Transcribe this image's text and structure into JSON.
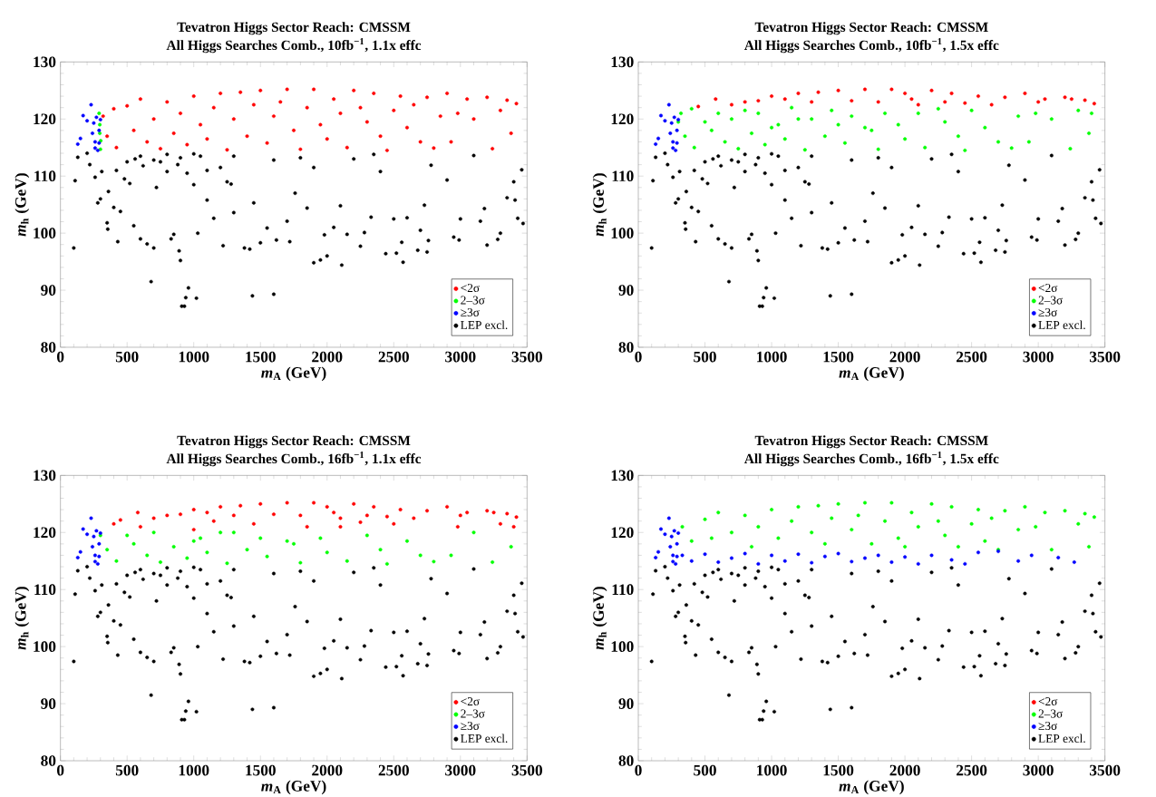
{
  "chart_data": [
    {
      "type": "scatter",
      "title": "Tevatron Higgs Sector Reach: CMSSM",
      "subtitle": "All Higgs Searches Comb., 10fb$^{−1}$, 1.1x effc",
      "xlabel": "*m*$_{A}$ (GeV)",
      "ylabel": "*m*$_{h}$ (GeV)",
      "xlim": [
        0,
        3500
      ],
      "ylim": [
        80,
        130
      ],
      "xticks": [
        0,
        500,
        1000,
        1500,
        2000,
        2500,
        3000,
        3500
      ],
      "yticks": [
        80,
        90,
        100,
        110,
        120,
        130
      ],
      "legend": "bottom right",
      "marker": "circle",
      "series": [
        {
          "name": "<2σ",
          "color": "#ff0000",
          "x": [
            320,
            350,
            400,
            420,
            500,
            550,
            600,
            650,
            700,
            750,
            800,
            850,
            900,
            950,
            1000,
            1050,
            1100,
            1150,
            1200,
            1250,
            1300,
            1350,
            1400,
            1450,
            1500,
            1550,
            1600,
            1650,
            1700,
            1750,
            1800,
            1850,
            1900,
            1950,
            2000,
            2050,
            2100,
            2150,
            2200,
            2250,
            2300,
            2350,
            2400,
            2450,
            2500,
            2550,
            2600,
            2650,
            2700,
            2750,
            2800,
            2850,
            2900,
            2930,
            2980,
            3050,
            3100,
            3200,
            3240,
            3300,
            3350,
            3380,
            3420
          ],
          "values": [
            120.5,
            117,
            121.8,
            115,
            122.3,
            118,
            123.5,
            116,
            120,
            114.8,
            123,
            117.5,
            121,
            115.5,
            124,
            119,
            116.5,
            122,
            124.5,
            114.6,
            120,
            124.7,
            117,
            122.5,
            125,
            115.8,
            120.5,
            123,
            125.2,
            118,
            114.7,
            122,
            125.2,
            119,
            116.5,
            123.5,
            121,
            115,
            125,
            122,
            119.5,
            124.5,
            117,
            114.5,
            121.5,
            124,
            118.5,
            122.5,
            116,
            123.8,
            114.9,
            120.5,
            124.5,
            116,
            121,
            123.5,
            120,
            123.8,
            114.8,
            121.5,
            123.3,
            117.5,
            122.7
          ]
        },
        {
          "name": "2–3σ",
          "color": "#00ff00",
          "x": [
            290,
            295,
            295,
            302,
            300
          ],
          "values": [
            121,
            119,
            117.5,
            116.2,
            114.7
          ]
        },
        {
          "name": "≥3σ",
          "color": "#0000ff",
          "x": [
            130,
            150,
            170,
            200,
            230,
            240,
            250,
            260,
            270,
            280,
            290,
            300,
            290,
            260
          ],
          "values": [
            115.6,
            116.6,
            120.6,
            119.7,
            122.5,
            117.5,
            119.3,
            116,
            120.3,
            114.5,
            118,
            119.9,
            115.8,
            114.9
          ]
        },
        {
          "name": "LEP excl.",
          "color": "#000000",
          "x": [
            100,
            110,
            130,
            200,
            220,
            260,
            280,
            300,
            310,
            350,
            355,
            360,
            400,
            420,
            430,
            450,
            480,
            520,
            550,
            560,
            600,
            620,
            650,
            680,
            700,
            720,
            750,
            800,
            830,
            850,
            880,
            890,
            900,
            910,
            930,
            940,
            960,
            1000,
            1020,
            1030,
            1050,
            1100,
            1150,
            1200,
            1220,
            1280,
            1300,
            1380,
            1420,
            1440,
            1450,
            1500,
            1550,
            1600,
            1620,
            1700,
            1720,
            1760,
            1850,
            1900,
            1950,
            1980,
            2000,
            2050,
            2100,
            2110,
            2150,
            2250,
            2280,
            2330,
            2400,
            2440,
            2500,
            2520,
            2560,
            2570,
            2600,
            2680,
            2700,
            2730,
            2750,
            2760,
            2780,
            2900,
            2950,
            2990,
            3000,
            3100,
            3150,
            3180,
            3200,
            3280,
            3300,
            3350,
            3400,
            3410,
            3430,
            3460,
            3470,
            1300,
            1600,
            1800,
            1900,
            2200,
            2350,
            600,
            700,
            800,
            900,
            1000,
            1100,
            500,
            950,
            1250
          ],
          "values": [
            97.4,
            109.2,
            113.3,
            114,
            112,
            109.8,
            105.3,
            106,
            110.8,
            101.8,
            100.7,
            107.3,
            104.5,
            111,
            98.5,
            103.8,
            109.5,
            108.7,
            101.3,
            113,
            99,
            111.8,
            98.1,
            91.5,
            97.4,
            108,
            112.5,
            110.8,
            99,
            99.8,
            112,
            96.9,
            95.2,
            87.2,
            87.2,
            88.7,
            90.4,
            108.5,
            88.6,
            100,
            113.5,
            105.8,
            102.6,
            111.5,
            97.8,
            108.6,
            103.6,
            97.4,
            97.2,
            89,
            105.3,
            98.3,
            100.9,
            89.3,
            98.8,
            102.1,
            98.5,
            107,
            104.4,
            94.8,
            95.3,
            99.7,
            96,
            101,
            104.8,
            94.4,
            99.8,
            97.7,
            100.1,
            102.8,
            110.8,
            96.4,
            102.5,
            96.5,
            98.4,
            94.9,
            102.7,
            97,
            100.5,
            104.9,
            96.7,
            98.7,
            111.9,
            109.3,
            99.3,
            98.8,
            102.5,
            113.6,
            102.1,
            104.3,
            97.9,
            98.9,
            100,
            106.2,
            109,
            105.8,
            102.6,
            111.1,
            101.7,
            113.5,
            112.8,
            113.2,
            111.5,
            113,
            113.8,
            113.5,
            112.8,
            113.8,
            113.2,
            113.9,
            111,
            112.5,
            110.5,
            109
          ]
        }
      ]
    },
    {
      "type": "scatter",
      "title": "Tevatron Higgs Sector Reach: CMSSM",
      "subtitle": "All Higgs Searches Comb., 10fb$^{−1}$, 1.5x effc",
      "xlabel": "*m*$_{A}$ (GeV)",
      "ylabel": "*m*$_{h}$ (GeV)",
      "xlim": [
        0,
        3500
      ],
      "ylim": [
        80,
        130
      ],
      "xticks": [
        0,
        500,
        1000,
        1500,
        2000,
        2500,
        3000,
        3500
      ],
      "yticks": [
        80,
        90,
        100,
        110,
        120,
        130
      ],
      "legend": "bottom right",
      "marker": "circle",
      "series": [
        {
          "name": "<2σ",
          "color": "#ff0000",
          "x": [
            450,
            580,
            700,
            800,
            900,
            1000,
            1100,
            1200,
            1300,
            1350,
            1500,
            1600,
            1700,
            1800,
            1900,
            2000,
            2050,
            2100,
            2200,
            2300,
            2350,
            2450,
            2550,
            2650,
            2750,
            2900,
            3000,
            3050,
            3200,
            3250,
            3350,
            3420
          ],
          "values": [
            122.2,
            123.5,
            122.5,
            123,
            123.2,
            124,
            123.5,
            124.5,
            123,
            124.7,
            125,
            123.2,
            125.2,
            123,
            125.2,
            124.5,
            123.5,
            122.5,
            125,
            123,
            124.5,
            122.8,
            124,
            122.5,
            123.8,
            124.5,
            123,
            123.5,
            123.8,
            123.5,
            123.3,
            122.7
          ]
        },
        {
          "name": "2–3σ",
          "color": "#00ff00",
          "x": [
            300,
            320,
            350,
            400,
            420,
            500,
            550,
            600,
            650,
            700,
            750,
            800,
            850,
            900,
            950,
            1000,
            1050,
            1100,
            1150,
            1200,
            1250,
            1300,
            1400,
            1450,
            1500,
            1550,
            1600,
            1700,
            1750,
            1800,
            1850,
            1950,
            2000,
            2100,
            2150,
            2250,
            2300,
            2400,
            2450,
            2500,
            2600,
            2700,
            2800,
            2850,
            2930,
            2980,
            3100,
            3240,
            3300,
            3380,
            3400
          ],
          "values": [
            119.5,
            121,
            117,
            121.8,
            115,
            119.5,
            118,
            121,
            116,
            120,
            114.8,
            121.5,
            117.5,
            121,
            115.5,
            118.5,
            119,
            116.5,
            122,
            120,
            114.6,
            120,
            117,
            121.5,
            119,
            115.8,
            120.5,
            118.5,
            118,
            114.7,
            121,
            119,
            116.5,
            121,
            115,
            121.8,
            119.5,
            117,
            114.5,
            121.5,
            118.5,
            116,
            114.9,
            120.5,
            116,
            121,
            120,
            114.8,
            121.5,
            117.5,
            121
          ]
        },
        {
          "name": "≥3σ",
          "color": "#0000ff",
          "x": [
            130,
            150,
            170,
            200,
            230,
            240,
            250,
            260,
            270,
            280,
            290,
            300,
            290,
            260
          ],
          "values": [
            115.6,
            116.6,
            120.6,
            119.7,
            122.5,
            117.5,
            119.3,
            116,
            120.3,
            114.5,
            118,
            119.9,
            115.8,
            114.9
          ]
        },
        {
          "name": "LEP excl.",
          "color": "#000000",
          "x": [
            100,
            110,
            130,
            200,
            220,
            260,
            280,
            300,
            310,
            350,
            355,
            360,
            400,
            420,
            430,
            450,
            480,
            520,
            550,
            560,
            600,
            620,
            650,
            680,
            700,
            720,
            750,
            800,
            830,
            850,
            880,
            890,
            900,
            910,
            930,
            940,
            960,
            1000,
            1020,
            1030,
            1050,
            1100,
            1150,
            1200,
            1220,
            1280,
            1300,
            1380,
            1420,
            1440,
            1450,
            1500,
            1550,
            1600,
            1620,
            1700,
            1720,
            1760,
            1850,
            1900,
            1950,
            1980,
            2000,
            2050,
            2100,
            2110,
            2150,
            2250,
            2280,
            2330,
            2400,
            2440,
            2500,
            2520,
            2560,
            2570,
            2600,
            2680,
            2700,
            2730,
            2750,
            2760,
            2780,
            2900,
            2950,
            2990,
            3000,
            3100,
            3150,
            3180,
            3200,
            3280,
            3300,
            3350,
            3400,
            3410,
            3430,
            3460,
            3470,
            1300,
            1600,
            1800,
            1900,
            2200,
            2350,
            600,
            700,
            800,
            900,
            1000,
            1100,
            500,
            950,
            1250
          ],
          "values": [
            97.4,
            109.2,
            113.3,
            114,
            112,
            109.8,
            105.3,
            106,
            110.8,
            101.8,
            100.7,
            107.3,
            104.5,
            111,
            98.5,
            103.8,
            109.5,
            108.7,
            101.3,
            113,
            99,
            111.8,
            98.1,
            91.5,
            97.4,
            108,
            112.5,
            110.8,
            99,
            99.8,
            112,
            96.9,
            95.2,
            87.2,
            87.2,
            88.7,
            90.4,
            108.5,
            88.6,
            100,
            113.5,
            105.8,
            102.6,
            111.5,
            97.8,
            108.6,
            103.6,
            97.4,
            97.2,
            89,
            105.3,
            98.3,
            100.9,
            89.3,
            98.8,
            102.1,
            98.5,
            107,
            104.4,
            94.8,
            95.3,
            99.7,
            96,
            101,
            104.8,
            94.4,
            99.8,
            97.7,
            100.1,
            102.8,
            110.8,
            96.4,
            102.5,
            96.5,
            98.4,
            94.9,
            102.7,
            97,
            100.5,
            104.9,
            96.7,
            98.7,
            111.9,
            109.3,
            99.3,
            98.8,
            102.5,
            113.6,
            102.1,
            104.3,
            97.9,
            98.9,
            100,
            106.2,
            109,
            105.8,
            102.6,
            111.1,
            101.7,
            113.5,
            112.8,
            113.2,
            111.5,
            113,
            113.8,
            113.5,
            112.8,
            113.8,
            113.2,
            113.9,
            111,
            112.5,
            110.5,
            109
          ]
        }
      ]
    },
    {
      "type": "scatter",
      "title": "Tevatron Higgs Sector Reach: CMSSM",
      "subtitle": "All Higgs Searches Comb., 16fb$^{−1}$, 1.1x effc",
      "xlabel": "*m*$_{A}$ (GeV)",
      "ylabel": "*m*$_{h}$ (GeV)",
      "xlim": [
        0,
        3500
      ],
      "ylim": [
        80,
        130
      ],
      "xticks": [
        0,
        500,
        1000,
        1500,
        2000,
        2500,
        3000,
        3500
      ],
      "yticks": [
        80,
        90,
        100,
        110,
        120,
        130
      ],
      "legend": "bottom right",
      "marker": "circle",
      "series": [
        {
          "name": "<2σ",
          "color": "#ff0000",
          "x": [
            400,
            450,
            580,
            600,
            700,
            800,
            900,
            1000,
            1000,
            1100,
            1150,
            1200,
            1300,
            1350,
            1450,
            1500,
            1600,
            1700,
            1800,
            1850,
            1900,
            2000,
            2050,
            2100,
            2100,
            2200,
            2250,
            2300,
            2350,
            2450,
            2500,
            2550,
            2650,
            2750,
            2900,
            2980,
            3000,
            3050,
            3200,
            3250,
            3300,
            3350,
            3400,
            3420
          ],
          "values": [
            121.5,
            122.2,
            123.5,
            121,
            122.5,
            123,
            123.2,
            124,
            120.5,
            123.5,
            122,
            124.5,
            123,
            124.7,
            121.5,
            125,
            123.2,
            125.2,
            123,
            121,
            125.2,
            124.5,
            123.5,
            122.5,
            121,
            125,
            121.8,
            123,
            124.5,
            122.8,
            121.5,
            124,
            122.5,
            123.8,
            124.5,
            121,
            123,
            123.5,
            123.8,
            123.5,
            121.5,
            123.3,
            121,
            122.7
          ]
        },
        {
          "name": "2–3σ",
          "color": "#00ff00",
          "x": [
            300,
            350,
            420,
            500,
            550,
            650,
            700,
            750,
            850,
            950,
            1000,
            1050,
            1100,
            1200,
            1250,
            1300,
            1400,
            1500,
            1550,
            1700,
            1750,
            1800,
            1950,
            2000,
            2150,
            2300,
            2400,
            2450,
            2600,
            2700,
            2800,
            2930,
            3100,
            3240,
            3380
          ],
          "values": [
            119.5,
            117,
            115,
            119.5,
            118,
            116,
            120,
            114.8,
            117.5,
            115.5,
            118.5,
            119,
            116.5,
            120,
            114.6,
            120,
            117,
            119,
            115.8,
            118.5,
            118,
            114.7,
            119,
            116.5,
            115,
            119.5,
            117,
            114.5,
            118.5,
            116,
            114.9,
            116,
            120,
            114.8,
            117.5
          ]
        },
        {
          "name": "≥3σ",
          "color": "#0000ff",
          "x": [
            130,
            150,
            170,
            200,
            230,
            240,
            250,
            260,
            270,
            280,
            290,
            300,
            290,
            260
          ],
          "values": [
            115.6,
            116.6,
            120.6,
            119.7,
            122.5,
            117.5,
            119.3,
            116,
            120.3,
            114.5,
            118,
            119.9,
            115.8,
            114.9
          ]
        },
        {
          "name": "LEP excl.",
          "color": "#000000",
          "x": [
            100,
            110,
            130,
            200,
            220,
            260,
            280,
            300,
            310,
            350,
            355,
            360,
            400,
            420,
            430,
            450,
            480,
            520,
            550,
            560,
            600,
            620,
            650,
            680,
            700,
            720,
            750,
            800,
            830,
            850,
            880,
            890,
            900,
            910,
            930,
            940,
            960,
            1000,
            1020,
            1030,
            1050,
            1100,
            1150,
            1200,
            1220,
            1280,
            1300,
            1380,
            1420,
            1440,
            1450,
            1500,
            1550,
            1600,
            1620,
            1700,
            1720,
            1760,
            1850,
            1900,
            1950,
            1980,
            2000,
            2050,
            2100,
            2110,
            2150,
            2250,
            2280,
            2330,
            2400,
            2440,
            2500,
            2520,
            2560,
            2570,
            2600,
            2680,
            2700,
            2730,
            2750,
            2760,
            2780,
            2900,
            2950,
            2990,
            3000,
            3100,
            3150,
            3180,
            3200,
            3280,
            3300,
            3350,
            3400,
            3410,
            3430,
            3460,
            3470,
            1300,
            1600,
            1800,
            1900,
            2200,
            2350,
            600,
            700,
            800,
            900,
            1000,
            1100,
            500,
            950,
            1250
          ],
          "values": [
            97.4,
            109.2,
            113.3,
            114,
            112,
            109.8,
            105.3,
            106,
            110.8,
            101.8,
            100.7,
            107.3,
            104.5,
            111,
            98.5,
            103.8,
            109.5,
            108.7,
            101.3,
            113,
            99,
            111.8,
            98.1,
            91.5,
            97.4,
            108,
            112.5,
            110.8,
            99,
            99.8,
            112,
            96.9,
            95.2,
            87.2,
            87.2,
            88.7,
            90.4,
            108.5,
            88.6,
            100,
            113.5,
            105.8,
            102.6,
            111.5,
            97.8,
            108.6,
            103.6,
            97.4,
            97.2,
            89,
            105.3,
            98.3,
            100.9,
            89.3,
            98.8,
            102.1,
            98.5,
            107,
            104.4,
            94.8,
            95.3,
            99.7,
            96,
            101,
            104.8,
            94.4,
            99.8,
            97.7,
            100.1,
            102.8,
            110.8,
            96.4,
            102.5,
            96.5,
            98.4,
            94.9,
            102.7,
            97,
            100.5,
            104.9,
            96.7,
            98.7,
            111.9,
            109.3,
            99.3,
            98.8,
            102.5,
            113.6,
            102.1,
            104.3,
            97.9,
            98.9,
            100,
            106.2,
            109,
            105.8,
            102.6,
            111.1,
            101.7,
            113.5,
            112.8,
            113.2,
            111.5,
            113,
            113.8,
            113.5,
            112.8,
            113.8,
            113.2,
            113.9,
            111,
            112.5,
            110.5,
            109
          ]
        }
      ]
    },
    {
      "type": "scatter",
      "title": "Tevatron Higgs Sector Reach: CMSSM",
      "subtitle": "All Higgs Searches Comb., 16fb$^{−1}$, 1.5x effc",
      "xlabel": "*m*$_{A}$ (GeV)",
      "ylabel": "*m*$_{h}$ (GeV)",
      "xlim": [
        0,
        3500
      ],
      "ylim": [
        80,
        130
      ],
      "xticks": [
        0,
        500,
        1000,
        1500,
        2000,
        2500,
        3000,
        3500
      ],
      "yticks": [
        80,
        90,
        100,
        110,
        120,
        130
      ],
      "legend": "bottom right",
      "marker": "circle",
      "series": [
        {
          "name": "<2σ",
          "color": "#ff0000"
        },
        {
          "name": "2–3σ",
          "color": "#00ff00",
          "x": [
            330,
            400,
            500,
            550,
            600,
            700,
            800,
            850,
            900,
            1000,
            1050,
            1150,
            1200,
            1300,
            1350,
            1400,
            1450,
            1500,
            1600,
            1650,
            1700,
            1750,
            1850,
            1900,
            1950,
            2000,
            2050,
            2100,
            2200,
            2250,
            2300,
            2350,
            2400,
            2500,
            2550,
            2600,
            2650,
            2700,
            2750,
            2850,
            2900,
            2980,
            3050,
            3100,
            3200,
            3300,
            3350,
            3380,
            3420
          ],
          "values": [
            121,
            118.5,
            122.3,
            119,
            123.5,
            120,
            123,
            117.5,
            121,
            124,
            119,
            122,
            124.5,
            120,
            124.7,
            118,
            122.5,
            125,
            120.5,
            123,
            125.2,
            118,
            122,
            125.2,
            119,
            117.5,
            123.5,
            121,
            125,
            122,
            119.5,
            124.5,
            117.5,
            121.5,
            124,
            118.5,
            122.5,
            117,
            123.8,
            120.5,
            124.5,
            121,
            123.5,
            117,
            123.8,
            121.5,
            123.3,
            117.5,
            122.7
          ]
        },
        {
          "name": "≥3σ",
          "color": "#0000ff",
          "x": [
            130,
            150,
            170,
            200,
            230,
            240,
            250,
            260,
            270,
            280,
            290,
            300,
            290,
            260,
            330,
            400,
            500,
            600,
            700,
            800,
            900,
            1000,
            1100,
            1200,
            1300,
            1400,
            1500,
            1600,
            1700,
            1800,
            1900,
            2000,
            2100,
            2200,
            2350,
            2450,
            2550,
            2700,
            2850,
            2950,
            3150,
            3270
          ],
          "values": [
            115.6,
            116.6,
            120.6,
            119.7,
            122.5,
            117.5,
            119.3,
            116,
            120.3,
            114.5,
            118,
            119.9,
            115.8,
            114.9,
            116,
            115,
            116.2,
            114.8,
            115.5,
            116.3,
            114.5,
            116,
            115,
            116.2,
            114.7,
            115.8,
            116.3,
            114.9,
            115.5,
            116,
            114.8,
            115.7,
            114.5,
            116,
            115.2,
            114.5,
            116.5,
            116.7,
            115,
            116,
            115.6,
            114.8
          ]
        },
        {
          "name": "LEP excl.",
          "color": "#000000",
          "x": [
            100,
            110,
            130,
            200,
            220,
            260,
            280,
            300,
            310,
            350,
            355,
            360,
            400,
            420,
            430,
            450,
            480,
            520,
            550,
            560,
            600,
            620,
            650,
            680,
            700,
            720,
            750,
            800,
            830,
            850,
            880,
            890,
            900,
            910,
            930,
            940,
            960,
            1000,
            1020,
            1030,
            1050,
            1100,
            1150,
            1200,
            1220,
            1280,
            1300,
            1380,
            1420,
            1440,
            1450,
            1500,
            1550,
            1600,
            1620,
            1700,
            1720,
            1760,
            1850,
            1900,
            1950,
            1980,
            2000,
            2050,
            2100,
            2110,
            2150,
            2250,
            2280,
            2330,
            2400,
            2440,
            2500,
            2520,
            2560,
            2570,
            2600,
            2680,
            2700,
            2730,
            2750,
            2760,
            2780,
            2900,
            2950,
            2990,
            3000,
            3100,
            3150,
            3180,
            3200,
            3280,
            3300,
            3350,
            3400,
            3410,
            3430,
            3460,
            3470,
            1300,
            1600,
            1800,
            1900,
            2200,
            2350,
            600,
            700,
            800,
            900,
            1000,
            1100,
            500,
            950,
            1250
          ],
          "values": [
            97.4,
            109.2,
            113.3,
            114,
            112,
            109.8,
            105.3,
            106,
            110.8,
            101.8,
            100.7,
            107.3,
            104.5,
            111,
            98.5,
            103.8,
            109.5,
            108.7,
            101.3,
            113,
            99,
            111.8,
            98.1,
            91.5,
            97.4,
            108,
            112.5,
            110.8,
            99,
            99.8,
            112,
            96.9,
            95.2,
            87.2,
            87.2,
            88.7,
            90.4,
            108.5,
            88.6,
            100,
            113.5,
            105.8,
            102.6,
            111.5,
            97.8,
            108.6,
            103.6,
            97.4,
            97.2,
            89,
            105.3,
            98.3,
            100.9,
            89.3,
            98.8,
            102.1,
            98.5,
            107,
            104.4,
            94.8,
            95.3,
            99.7,
            96,
            101,
            104.8,
            94.4,
            99.8,
            97.7,
            100.1,
            102.8,
            110.8,
            96.4,
            102.5,
            96.5,
            98.4,
            94.9,
            102.7,
            97,
            100.5,
            104.9,
            96.7,
            98.7,
            111.9,
            109.3,
            99.3,
            98.8,
            102.5,
            113.6,
            102.1,
            104.3,
            97.9,
            98.9,
            100,
            106.2,
            109,
            105.8,
            102.6,
            111.1,
            101.7,
            113.5,
            112.8,
            113.2,
            111.5,
            113,
            113.8,
            113.5,
            112.8,
            113.8,
            113.2,
            113.9,
            111,
            112.5,
            110.5,
            109
          ]
        }
      ]
    }
  ]
}
